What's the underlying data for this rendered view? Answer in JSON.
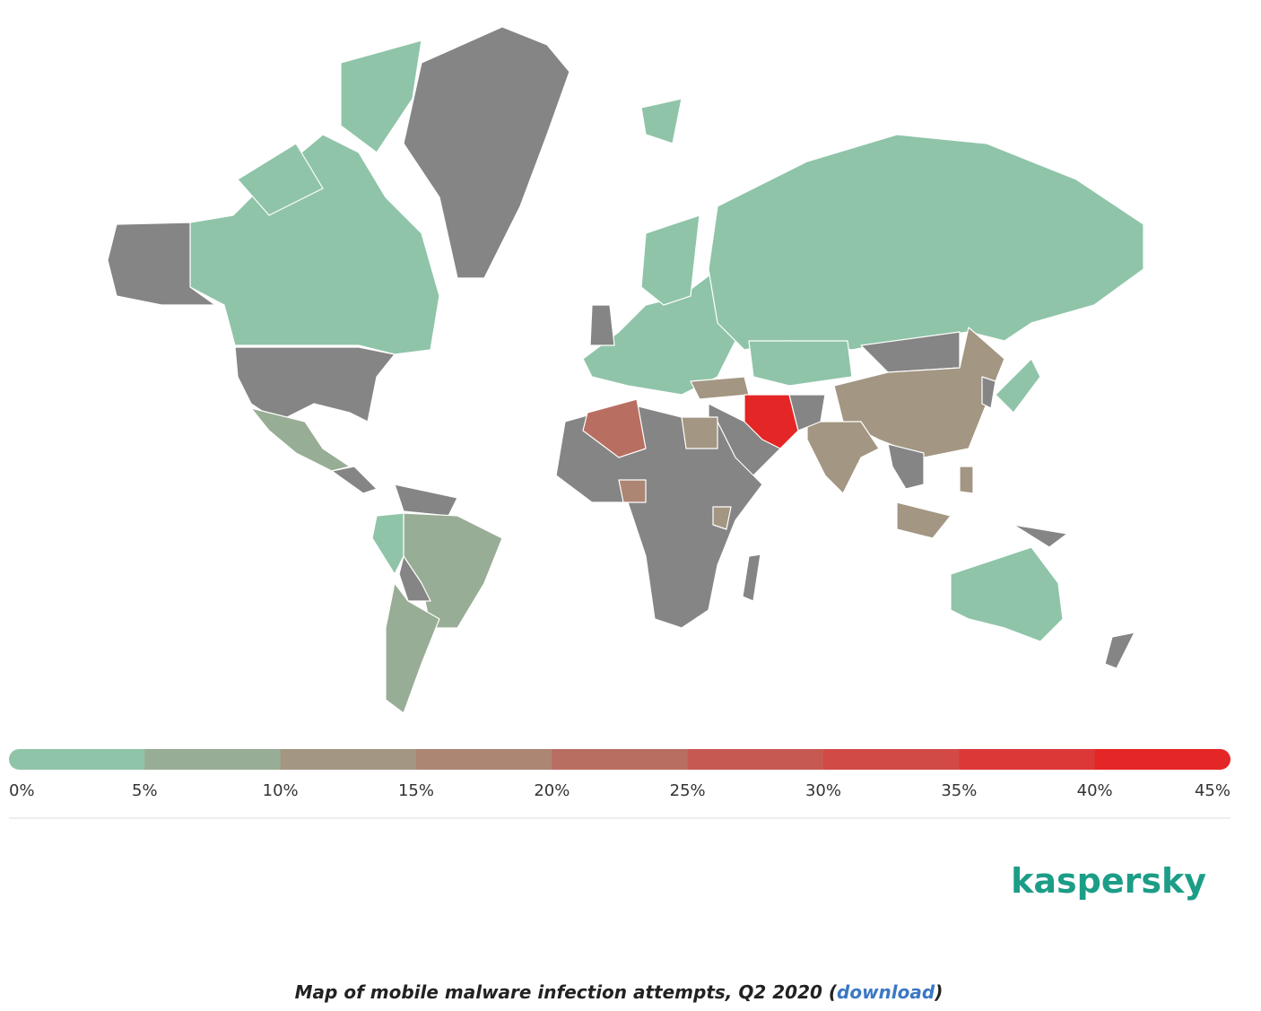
{
  "legend": {
    "labels": [
      "0%",
      "5%",
      "10%",
      "15%",
      "20%",
      "25%",
      "30%",
      "35%",
      "40%",
      "45%"
    ],
    "colors": [
      "#8fc4a8",
      "#98ad95",
      "#a39682",
      "#ad8573",
      "#b96e62",
      "#c65a52",
      "#d24a46",
      "#dd3838",
      "#e52626"
    ]
  },
  "logo": "kaspersky",
  "caption": {
    "text": "Map of mobile malware infection attempts, Q2 2020 (",
    "link": "download",
    "close": ")"
  }
}
